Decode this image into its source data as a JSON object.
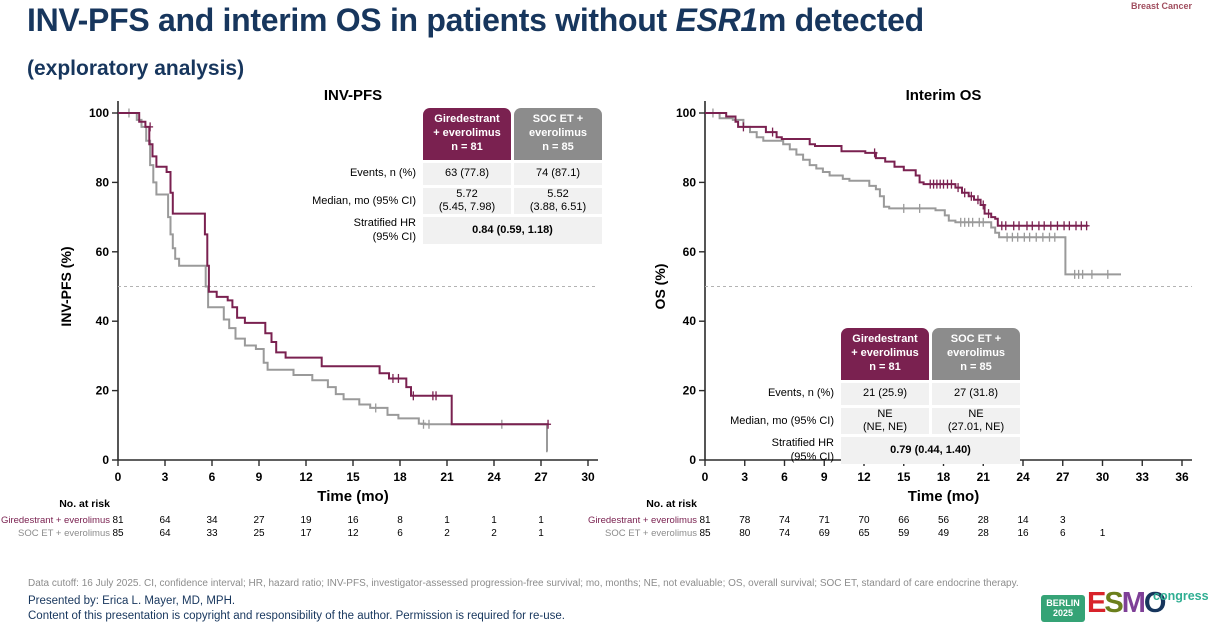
{
  "page": {
    "tag": "Breast Cancer",
    "title": {
      "prefix": "INV-PFS and interim OS in patients without ",
      "italic": "ESR1",
      "suffix": "m detected"
    },
    "subtitle": "(exploratory analysis)",
    "colors": {
      "accent_maroon": "#7A2150",
      "accent_gray": "#8C8C8C",
      "title_navy": "#17365D"
    }
  },
  "chart_data": [
    {
      "type": "line",
      "subtype": "kaplan-meier",
      "title": "INV-PFS",
      "xlabel": "Time (mo)",
      "ylabel": "INV-PFS (%)",
      "xlim": [
        0,
        30
      ],
      "ylim": [
        0,
        100
      ],
      "xticks": [
        0,
        3,
        6,
        9,
        12,
        15,
        18,
        21,
        24,
        27,
        30
      ],
      "yticks": [
        0,
        20,
        40,
        60,
        80,
        100
      ],
      "median_reference_y": 50,
      "series": [
        {
          "name": "Giredestrant + everolimus",
          "n": 81,
          "color": "#7A2150",
          "drops": [
            [
              1.35,
              97.5
            ],
            [
              1.75,
              96
            ],
            [
              2.0,
              91
            ],
            [
              2.2,
              87.5
            ],
            [
              2.45,
              84.5
            ],
            [
              3.1,
              83
            ],
            [
              3.35,
              77
            ],
            [
              3.5,
              71
            ],
            [
              5.55,
              65
            ],
            [
              5.7,
              56
            ],
            [
              5.8,
              48.5
            ],
            [
              6.3,
              47
            ],
            [
              7.0,
              46
            ],
            [
              7.3,
              44
            ],
            [
              7.6,
              41
            ],
            [
              8.1,
              39.5
            ],
            [
              9.4,
              36.5
            ],
            [
              9.8,
              34
            ],
            [
              10.1,
              31
            ],
            [
              10.7,
              29.5
            ],
            [
              13.0,
              27
            ],
            [
              16.7,
              25
            ],
            [
              17.3,
              23.5
            ],
            [
              18.4,
              21
            ],
            [
              18.7,
              18.5
            ],
            [
              21.3,
              10.3
            ]
          ],
          "end_x": 27.5,
          "censors": [
            [
              2.05,
              96
            ],
            [
              17.55,
              23.5
            ],
            [
              17.9,
              23.5
            ],
            [
              18.85,
              18.5
            ],
            [
              20.1,
              18.5
            ],
            [
              20.3,
              18.5
            ],
            [
              27.45,
              10.3
            ]
          ]
        },
        {
          "name": "SOC ET + everolimus",
          "n": 85,
          "color": "#9A9A9A",
          "drops": [
            [
              1.2,
              98
            ],
            [
              1.5,
              96
            ],
            [
              1.8,
              92
            ],
            [
              2.05,
              85
            ],
            [
              2.25,
              80
            ],
            [
              2.45,
              76.5
            ],
            [
              3.2,
              70
            ],
            [
              3.35,
              65
            ],
            [
              3.5,
              61
            ],
            [
              3.65,
              58
            ],
            [
              3.9,
              56
            ],
            [
              5.6,
              50
            ],
            [
              5.75,
              44
            ],
            [
              6.75,
              40.5
            ],
            [
              7.1,
              38
            ],
            [
              7.5,
              35
            ],
            [
              8.1,
              33
            ],
            [
              8.8,
              32
            ],
            [
              9.3,
              28
            ],
            [
              9.55,
              26
            ],
            [
              11.2,
              24.5
            ],
            [
              12.4,
              23
            ],
            [
              13.4,
              21
            ],
            [
              13.9,
              19
            ],
            [
              14.4,
              17.5
            ],
            [
              15.4,
              16
            ],
            [
              16.1,
              15
            ],
            [
              17.2,
              13
            ],
            [
              17.9,
              12
            ],
            [
              19.2,
              10.5
            ],
            [
              19.6,
              10.3
            ],
            [
              27.38,
              2.5
            ]
          ],
          "end_x": 27.42,
          "censors": [
            [
              0.7,
              100
            ],
            [
              16.45,
              15
            ],
            [
              19.5,
              10.3
            ],
            [
              19.85,
              10.3
            ],
            [
              24.5,
              10.3
            ]
          ]
        }
      ],
      "stats_table": {
        "group_headers": [
          "Giredestrant\n+ everolimus\nn = 81",
          "SOC ET +\neverolimus\nn = 85"
        ],
        "row_labels": [
          "Events, n (%)",
          "Median, mo (95% CI)",
          "Stratified HR\n(95% CI)"
        ],
        "events": [
          "63 (77.8)",
          "74 (87.1)"
        ],
        "median": [
          "5.72\n(5.45, 7.98)",
          "5.52\n(3.88, 6.51)"
        ],
        "hr": "0.84 (0.59, 1.18)"
      },
      "at_risk": {
        "label": "No. at risk",
        "rows": [
          {
            "name": "Giredestrant + everolimus",
            "color": "#7A2150",
            "values": [
              81,
              64,
              34,
              27,
              19,
              16,
              8,
              1,
              1,
              1
            ]
          },
          {
            "name": "SOC ET + everolimus",
            "color": "#8C8C8C",
            "values": [
              85,
              64,
              33,
              25,
              17,
              12,
              6,
              2,
              2,
              1
            ]
          }
        ]
      }
    },
    {
      "type": "line",
      "subtype": "kaplan-meier",
      "title": "Interim OS",
      "xlabel": "Time (mo)",
      "ylabel": "OS (%)",
      "xlim": [
        0,
        36
      ],
      "ylim": [
        0,
        100
      ],
      "xticks": [
        0,
        3,
        6,
        9,
        12,
        15,
        18,
        21,
        24,
        27,
        30,
        33,
        36
      ],
      "yticks": [
        0,
        20,
        40,
        60,
        80,
        100
      ],
      "median_reference_y": 50,
      "series": [
        {
          "name": "Giredestrant + everolimus",
          "n": 81,
          "color": "#7A2150",
          "drops": [
            [
              1.6,
              99
            ],
            [
              2.3,
              97.5
            ],
            [
              2.5,
              96
            ],
            [
              4.6,
              94.5
            ],
            [
              5.4,
              93
            ],
            [
              5.8,
              92.5
            ],
            [
              7.9,
              91
            ],
            [
              8.3,
              90.5
            ],
            [
              10.3,
              89
            ],
            [
              12.1,
              88.5
            ],
            [
              12.9,
              87
            ],
            [
              13.6,
              86
            ],
            [
              14.3,
              84.5
            ],
            [
              15.0,
              83.5
            ],
            [
              15.9,
              82
            ],
            [
              16.2,
              80
            ],
            [
              16.5,
              79.5
            ],
            [
              18.9,
              78.5
            ],
            [
              19.4,
              77
            ],
            [
              19.9,
              76
            ],
            [
              20.3,
              75
            ],
            [
              20.8,
              73.5
            ],
            [
              21.1,
              71
            ],
            [
              21.6,
              70
            ],
            [
              21.9,
              69.5
            ],
            [
              22.1,
              67.5
            ]
          ],
          "end_x": 28.9,
          "censors": [
            [
              2.9,
              96
            ],
            [
              5.1,
              94.5
            ],
            [
              12.8,
              88.5
            ],
            [
              17.0,
              79.5
            ],
            [
              17.25,
              79.5
            ],
            [
              17.5,
              79.5
            ],
            [
              17.75,
              79.5
            ],
            [
              18.0,
              79.5
            ],
            [
              18.3,
              79.5
            ],
            [
              18.6,
              79.5
            ],
            [
              19.1,
              78.5
            ],
            [
              19.6,
              77
            ],
            [
              20.1,
              76
            ],
            [
              20.6,
              75
            ],
            [
              21.0,
              73.5
            ],
            [
              21.4,
              71
            ],
            [
              22.4,
              67.5
            ],
            [
              22.7,
              67.5
            ],
            [
              23.3,
              67.5
            ],
            [
              23.7,
              67.5
            ],
            [
              24.3,
              67.5
            ],
            [
              24.7,
              67.5
            ],
            [
              25.2,
              67.5
            ],
            [
              25.6,
              67.5
            ],
            [
              26.1,
              67.5
            ],
            [
              26.6,
              67.5
            ],
            [
              27.1,
              67.5
            ],
            [
              27.5,
              67.5
            ],
            [
              28.0,
              67.5
            ],
            [
              28.4,
              67.5
            ],
            [
              28.8,
              67.5
            ]
          ]
        },
        {
          "name": "SOC ET + everolimus",
          "n": 85,
          "color": "#9A9A9A",
          "drops": [
            [
              1.1,
              98.5
            ],
            [
              2.1,
              98
            ],
            [
              2.9,
              96
            ],
            [
              3.4,
              94.5
            ],
            [
              3.9,
              93
            ],
            [
              4.4,
              92
            ],
            [
              5.9,
              91
            ],
            [
              6.4,
              89.5
            ],
            [
              6.9,
              88
            ],
            [
              7.4,
              86.5
            ],
            [
              7.9,
              85
            ],
            [
              8.4,
              84
            ],
            [
              8.9,
              83
            ],
            [
              9.4,
              82
            ],
            [
              10.4,
              81
            ],
            [
              10.9,
              80.5
            ],
            [
              12.4,
              79
            ],
            [
              12.9,
              78
            ],
            [
              13.2,
              76
            ],
            [
              13.5,
              73
            ],
            [
              13.9,
              72.5
            ],
            [
              17.4,
              72
            ],
            [
              18.1,
              70.5
            ],
            [
              18.4,
              69
            ],
            [
              18.9,
              68.5
            ],
            [
              21.6,
              67
            ],
            [
              21.9,
              65.5
            ],
            [
              22.2,
              64.2
            ],
            [
              27.2,
              53.5
            ]
          ],
          "end_x": 31.4,
          "censors": [
            [
              0.6,
              100
            ],
            [
              15.0,
              72.5
            ],
            [
              16.2,
              72.5
            ],
            [
              19.3,
              68.5
            ],
            [
              19.6,
              68.5
            ],
            [
              19.9,
              68.5
            ],
            [
              20.2,
              68.5
            ],
            [
              20.7,
              68.5
            ],
            [
              21.0,
              68.5
            ],
            [
              22.8,
              64.2
            ],
            [
              23.2,
              64.2
            ],
            [
              23.6,
              64.2
            ],
            [
              24.1,
              64.2
            ],
            [
              24.5,
              64.2
            ],
            [
              25.0,
              64.2
            ],
            [
              25.5,
              64.2
            ],
            [
              26.0,
              64.2
            ],
            [
              26.4,
              64.2
            ],
            [
              27.9,
              53.5
            ],
            [
              28.2,
              53.5
            ],
            [
              28.5,
              53.5
            ],
            [
              29.2,
              53.5
            ],
            [
              30.4,
              53.5
            ]
          ]
        }
      ],
      "stats_table": {
        "group_headers": [
          "Giredestrant\n+ everolimus\nn = 81",
          "SOC ET +\neverolimus\nn = 85"
        ],
        "row_labels": [
          "Events, n (%)",
          "Median, mo (95% CI)",
          "Stratified HR\n(95% CI)"
        ],
        "events": [
          "21 (25.9)",
          "27 (31.8)"
        ],
        "median": [
          "NE\n(NE, NE)",
          "NE\n(27.01, NE)"
        ],
        "hr": "0.79 (0.44, 1.40)"
      },
      "at_risk": {
        "label": "No. at risk",
        "rows": [
          {
            "name": "Giredestrant + everolimus",
            "color": "#7A2150",
            "values": [
              81,
              78,
              74,
              71,
              70,
              66,
              56,
              28,
              14,
              3
            ]
          },
          {
            "name": "SOC ET + everolimus",
            "color": "#8C8C8C",
            "values": [
              85,
              80,
              74,
              69,
              65,
              59,
              49,
              28,
              16,
              6,
              1
            ]
          }
        ]
      }
    }
  ],
  "footer": {
    "data_cutoff": "Data cutoff: 16 July 2025. CI, confidence interval; HR, hazard ratio; INV-PFS, investigator-assessed progression-free survival; mo, months; NE, not evaluable; OS, overall survival; SOC ET, standard of care endocrine therapy.",
    "presented_by": "Presented by: Erica L. Mayer, MD, MPH.",
    "copyright": "Content of this presentation is copyright and responsibility of the author. Permission is required for re-use."
  },
  "logo": {
    "berlin": "BERLIN",
    "year": "2025",
    "berlin_bg": "#35A376",
    "letters": [
      "E",
      "S",
      "M",
      "O"
    ],
    "letter_colors": [
      "#D8232A",
      "#6B7F1C",
      "#7E3F97",
      "#16355C"
    ],
    "congress": "congress",
    "congress_color": "#2FAE92"
  }
}
